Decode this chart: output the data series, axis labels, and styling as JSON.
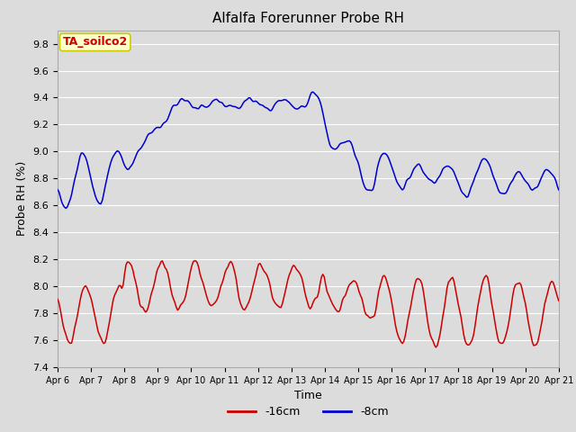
{
  "title": "Alfalfa Forerunner Probe RH",
  "ylabel": "Probe RH (%)",
  "xlabel": "Time",
  "ylim": [
    7.4,
    9.9
  ],
  "yticks": [
    7.4,
    7.6,
    7.8,
    8.0,
    8.2,
    8.4,
    8.6,
    8.8,
    9.0,
    9.2,
    9.4,
    9.6,
    9.8
  ],
  "xtick_labels": [
    "Apr 6",
    "Apr 7",
    "Apr 8",
    "Apr 9",
    "Apr 10",
    "Apr 11",
    "Apr 12",
    "Apr 13",
    "Apr 14",
    "Apr 15",
    "Apr 16",
    "Apr 17",
    "Apr 18",
    "Apr 19",
    "Apr 20",
    "Apr 21"
  ],
  "line_blue_color": "#0000cc",
  "line_red_color": "#cc0000",
  "legend_entries": [
    "-16cm",
    "-8cm"
  ],
  "legend_colors": [
    "#cc0000",
    "#0000cc"
  ],
  "annotation_text": "TA_soilco2",
  "annotation_color": "#cc0000",
  "annotation_bg": "#ffffcc",
  "annotation_edge": "#cccc00",
  "bg_color": "#dcdcdc",
  "grid_color": "#ffffff",
  "title_fontsize": 11,
  "axis_fontsize": 9,
  "tick_fontsize": 8
}
